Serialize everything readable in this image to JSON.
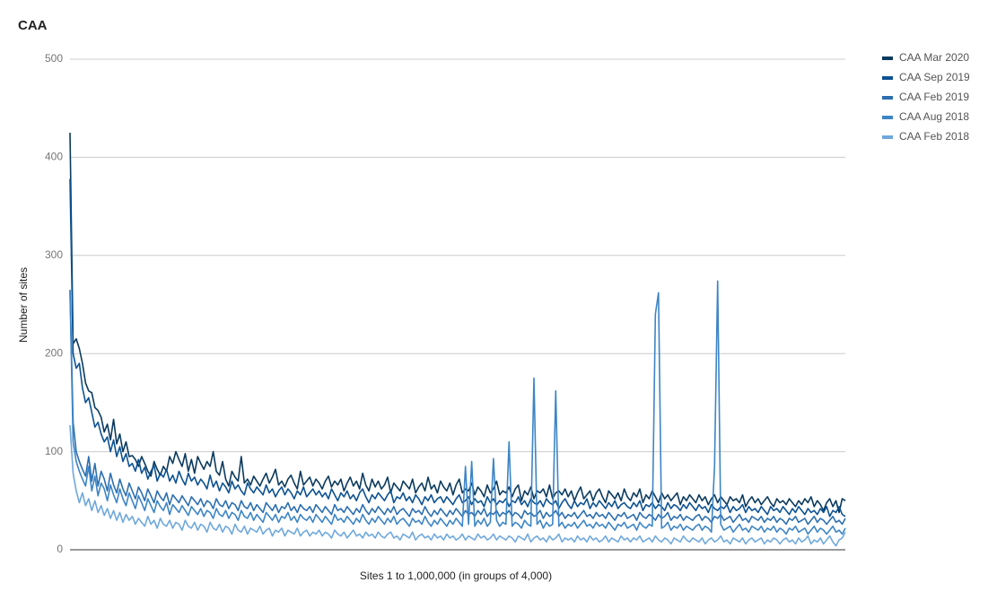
{
  "chart_data": {
    "type": "line",
    "title": "CAA",
    "x_label": "Sites 1 to 1,000,000 (in groups of 4,000)",
    "y_label": "Number of sites",
    "ylim": [
      0,
      500
    ],
    "yticks": [
      0,
      100,
      200,
      300,
      400,
      500
    ],
    "grid": true,
    "legend": "right",
    "series": [
      {
        "name": "CAA Mar 2020",
        "color": "#0b3a5e",
        "values": [
          425,
          210,
          215,
          205,
          190,
          170,
          162,
          160,
          145,
          142,
          135,
          120,
          128,
          112,
          133,
          108,
          118,
          100,
          110,
          95,
          96,
          92,
          85,
          95,
          88,
          80,
          75,
          90,
          82,
          76,
          85,
          80,
          95,
          88,
          100,
          92,
          85,
          98,
          80,
          92,
          78,
          95,
          88,
          82,
          90,
          85,
          100,
          80,
          76,
          90,
          72,
          65,
          80,
          74,
          70,
          95,
          68,
          72,
          66,
          75,
          70,
          65,
          72,
          78,
          68,
          74,
          82,
          66,
          70,
          64,
          72,
          76,
          68,
          62,
          80,
          66,
          70,
          74,
          65,
          72,
          68,
          62,
          70,
          75,
          64,
          70,
          66,
          72,
          60,
          68,
          74,
          65,
          70,
          62,
          78,
          66,
          60,
          72,
          64,
          70,
          62,
          66,
          74,
          58,
          68,
          64,
          60,
          70,
          66,
          62,
          72,
          58,
          64,
          68,
          60,
          74,
          62,
          66,
          58,
          70,
          64,
          60,
          68,
          56,
          66,
          72,
          58,
          62,
          60,
          68,
          56,
          64,
          60,
          54,
          66,
          58,
          62,
          70,
          56,
          60,
          58,
          64,
          54,
          62,
          66,
          50,
          60,
          56,
          64,
          52,
          60,
          58,
          62,
          54,
          66,
          52,
          58,
          60,
          56,
          62,
          54,
          60,
          50,
          58,
          64,
          52,
          56,
          60,
          50,
          58,
          62,
          54,
          48,
          60,
          56,
          52,
          58,
          50,
          62,
          54,
          50,
          58,
          54,
          62,
          48,
          56,
          52,
          60,
          54,
          48,
          58,
          52,
          56,
          50,
          54,
          58,
          46,
          54,
          50,
          56,
          52,
          48,
          56,
          50,
          54,
          46,
          52,
          56,
          48,
          54,
          50,
          46,
          54,
          50,
          52,
          48,
          56,
          44,
          50,
          54,
          48,
          52,
          46,
          50,
          54,
          48,
          44,
          52,
          48,
          50,
          46,
          52,
          48,
          44,
          50,
          46,
          52,
          48,
          54,
          44,
          50,
          46,
          40,
          48,
          52,
          44,
          50,
          38,
          52,
          50
        ]
      },
      {
        "name": "CAA Sep 2019",
        "color": "#0d5292",
        "values": [
          378,
          200,
          185,
          190,
          165,
          150,
          155,
          140,
          125,
          130,
          118,
          110,
          115,
          100,
          112,
          95,
          105,
          90,
          98,
          85,
          88,
          80,
          92,
          78,
          84,
          72,
          80,
          86,
          70,
          78,
          74,
          82,
          70,
          76,
          68,
          80,
          72,
          66,
          78,
          70,
          74,
          66,
          72,
          68,
          62,
          76,
          64,
          70,
          60,
          68,
          64,
          58,
          70,
          62,
          66,
          60,
          56,
          68,
          62,
          58,
          64,
          60,
          56,
          66,
          58,
          62,
          54,
          60,
          64,
          56,
          62,
          58,
          52,
          60,
          56,
          64,
          54,
          58,
          62,
          56,
          60,
          54,
          58,
          52,
          62,
          56,
          50,
          58,
          54,
          60,
          52,
          56,
          50,
          58,
          62,
          54,
          48,
          56,
          52,
          58,
          54,
          50,
          56,
          60,
          48,
          54,
          52,
          58,
          50,
          54,
          48,
          56,
          52,
          46,
          54,
          50,
          56,
          48,
          52,
          54,
          48,
          54,
          50,
          46,
          52,
          56,
          48,
          50,
          54,
          46,
          52,
          48,
          50,
          44,
          54,
          48,
          52,
          46,
          50,
          48,
          52,
          44,
          50,
          48,
          54,
          46,
          50,
          44,
          52,
          48,
          46,
          50,
          44,
          52,
          48,
          46,
          50,
          42,
          48,
          52,
          46,
          42,
          50,
          44,
          48,
          46,
          52,
          42,
          48,
          44,
          50,
          46,
          42,
          48,
          44,
          50,
          42,
          46,
          48,
          44,
          42,
          48,
          44,
          50,
          40,
          46,
          44,
          48,
          42,
          46,
          44,
          40,
          48,
          42,
          46,
          44,
          40,
          46,
          42,
          48,
          44,
          40,
          46,
          42,
          44,
          38,
          46,
          42,
          40,
          44,
          42,
          46,
          38,
          44,
          40,
          42,
          46,
          38,
          44,
          40,
          42,
          38,
          44,
          40,
          36,
          44,
          40,
          42,
          38,
          44,
          40,
          36,
          42,
          38,
          44,
          40,
          36,
          42,
          38,
          40,
          36,
          42,
          38,
          44,
          34,
          40,
          38,
          44,
          36,
          34
        ]
      },
      {
        "name": "CAA Feb 2019",
        "color": "#2c6fb0",
        "values": [
          265,
          130,
          100,
          90,
          82,
          75,
          95,
          70,
          88,
          65,
          80,
          72,
          60,
          78,
          66,
          58,
          72,
          62,
          55,
          68,
          60,
          52,
          64,
          58,
          50,
          62,
          55,
          48,
          60,
          54,
          50,
          58,
          46,
          56,
          52,
          48,
          55,
          50,
          45,
          54,
          50,
          46,
          52,
          44,
          50,
          48,
          42,
          52,
          46,
          44,
          50,
          42,
          48,
          46,
          40,
          50,
          44,
          42,
          48,
          40,
          46,
          42,
          38,
          48,
          44,
          40,
          46,
          38,
          44,
          42,
          48,
          40,
          44,
          38,
          46,
          42,
          40,
          44,
          38,
          46,
          42,
          38,
          44,
          40,
          36,
          46,
          40,
          42,
          38,
          44,
          40,
          36,
          42,
          38,
          46,
          40,
          36,
          42,
          38,
          44,
          40,
          36,
          42,
          38,
          44,
          36,
          40,
          42,
          38,
          34,
          42,
          38,
          40,
          36,
          44,
          38,
          34,
          40,
          36,
          42,
          38,
          34,
          40,
          36,
          42,
          38,
          34,
          40,
          36,
          38,
          34,
          40,
          36,
          42,
          34,
          38,
          36,
          40,
          34,
          38,
          36,
          40,
          34,
          38,
          36,
          32,
          40,
          36,
          38,
          34,
          36,
          40,
          32,
          38,
          34,
          36,
          40,
          34,
          38,
          32,
          36,
          34,
          38,
          32,
          36,
          40,
          34,
          36,
          32,
          38,
          34,
          36,
          32,
          38,
          34,
          30,
          36,
          34,
          38,
          32,
          34,
          36,
          30,
          38,
          34,
          32,
          36,
          34,
          30,
          36,
          32,
          34,
          38,
          30,
          34,
          32,
          36,
          30,
          34,
          32,
          30,
          34,
          36,
          30,
          34,
          32,
          28,
          34,
          32,
          36,
          30,
          32,
          34,
          28,
          32,
          36,
          30,
          32,
          28,
          34,
          32,
          30,
          34,
          28,
          32,
          30,
          34,
          28,
          32,
          30,
          26,
          32,
          30,
          34,
          28,
          30,
          32,
          26,
          30,
          34,
          28,
          32,
          30,
          26,
          30,
          34,
          28,
          30,
          26,
          32
        ]
      },
      {
        "name": "CAA Aug 2018",
        "color": "#3d85c6",
        "values": [
          262,
          110,
          90,
          80,
          72,
          65,
          85,
          60,
          75,
          55,
          68,
          62,
          50,
          66,
          56,
          48,
          62,
          52,
          45,
          58,
          50,
          42,
          55,
          48,
          40,
          52,
          45,
          38,
          50,
          44,
          40,
          48,
          36,
          46,
          42,
          38,
          45,
          40,
          35,
          44,
          40,
          36,
          42,
          34,
          40,
          38,
          32,
          42,
          36,
          34,
          40,
          32,
          38,
          36,
          30,
          40,
          34,
          32,
          38,
          30,
          36,
          32,
          28,
          38,
          34,
          30,
          36,
          28,
          34,
          32,
          38,
          30,
          34,
          28,
          36,
          32,
          30,
          34,
          28,
          36,
          32,
          28,
          34,
          30,
          26,
          36,
          30,
          32,
          28,
          34,
          30,
          26,
          32,
          28,
          36,
          30,
          26,
          32,
          28,
          34,
          30,
          26,
          32,
          28,
          34,
          26,
          30,
          32,
          28,
          24,
          32,
          28,
          30,
          26,
          34,
          28,
          24,
          30,
          26,
          32,
          28,
          24,
          30,
          26,
          32,
          28,
          24,
          85,
          26,
          90,
          24,
          30,
          26,
          32,
          24,
          28,
          93,
          30,
          24,
          28,
          26,
          110,
          24,
          28,
          26,
          22,
          30,
          26,
          24,
          175,
          26,
          30,
          22,
          28,
          24,
          26,
          162,
          24,
          28,
          22,
          26,
          24,
          28,
          22,
          26,
          30,
          24,
          26,
          22,
          28,
          24,
          26,
          22,
          28,
          24,
          20,
          26,
          24,
          28,
          22,
          24,
          26,
          20,
          28,
          24,
          22,
          26,
          24,
          240,
          262,
          22,
          24,
          28,
          20,
          24,
          22,
          26,
          20,
          24,
          22,
          20,
          24,
          26,
          20,
          24,
          22,
          18,
          85,
          274,
          26,
          20,
          22,
          24,
          18,
          22,
          26,
          20,
          22,
          18,
          24,
          22,
          20,
          24,
          18,
          22,
          20,
          24,
          18,
          22,
          20,
          16,
          22,
          20,
          24,
          18,
          20,
          22,
          16,
          20,
          24,
          18,
          22,
          20,
          16,
          20,
          24,
          18,
          20,
          16,
          22
        ]
      },
      {
        "name": "CAA Feb 2018",
        "color": "#6fa8dc",
        "values": [
          127,
          78,
          60,
          48,
          58,
          45,
          52,
          40,
          50,
          38,
          45,
          35,
          42,
          32,
          40,
          30,
          38,
          28,
          36,
          30,
          34,
          26,
          32,
          28,
          24,
          34,
          26,
          30,
          22,
          32,
          26,
          24,
          30,
          22,
          28,
          26,
          20,
          30,
          24,
          22,
          28,
          20,
          26,
          24,
          18,
          28,
          22,
          20,
          26,
          18,
          24,
          22,
          16,
          26,
          20,
          18,
          24,
          16,
          22,
          20,
          18,
          24,
          16,
          20,
          22,
          14,
          20,
          18,
          22,
          14,
          20,
          18,
          16,
          22,
          14,
          18,
          20,
          14,
          18,
          16,
          20,
          14,
          18,
          16,
          12,
          20,
          16,
          14,
          18,
          12,
          16,
          20,
          14,
          16,
          12,
          18,
          14,
          16,
          12,
          18,
          14,
          12,
          16,
          18,
          12,
          14,
          10,
          16,
          14,
          12,
          18,
          10,
          14,
          16,
          12,
          14,
          10,
          16,
          12,
          14,
          10,
          16,
          12,
          14,
          10,
          12,
          16,
          10,
          14,
          12,
          10,
          16,
          12,
          14,
          10,
          12,
          16,
          10,
          14,
          12,
          10,
          14,
          12,
          8,
          14,
          12,
          10,
          16,
          8,
          12,
          14,
          10,
          12,
          8,
          14,
          10,
          12,
          16,
          8,
          12,
          10,
          12,
          8,
          14,
          10,
          12,
          8,
          14,
          10,
          12,
          8,
          10,
          14,
          8,
          12,
          10,
          8,
          14,
          10,
          12,
          8,
          12,
          10,
          14,
          8,
          10,
          12,
          8,
          14,
          10,
          8,
          12,
          10,
          6,
          12,
          10,
          8,
          14,
          10,
          8,
          12,
          10,
          8,
          12,
          6,
          10,
          12,
          8,
          10,
          14,
          8,
          10,
          6,
          12,
          10,
          8,
          12,
          6,
          10,
          12,
          8,
          10,
          12,
          6,
          10,
          8,
          12,
          10,
          6,
          10,
          12,
          8,
          10,
          6,
          12,
          8,
          10,
          14,
          6,
          10,
          8,
          12,
          6,
          10,
          14,
          8,
          4,
          10,
          12,
          18
        ]
      }
    ]
  }
}
